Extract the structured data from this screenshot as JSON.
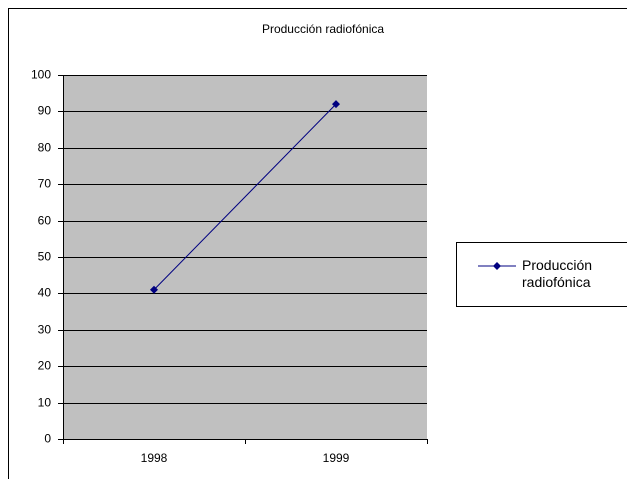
{
  "chart_data": {
    "type": "line",
    "title": "Producción radiofónica",
    "categories": [
      "1998",
      "1999"
    ],
    "series": [
      {
        "name": "Producción radiofónica",
        "color": "#000080",
        "values": [
          41,
          92
        ]
      }
    ],
    "ylim": [
      0,
      100
    ],
    "yticks": [
      0,
      10,
      20,
      30,
      40,
      50,
      60,
      70,
      80,
      90,
      100
    ],
    "grid": true,
    "legend": "right",
    "plot_background": "#c0c0c0"
  }
}
